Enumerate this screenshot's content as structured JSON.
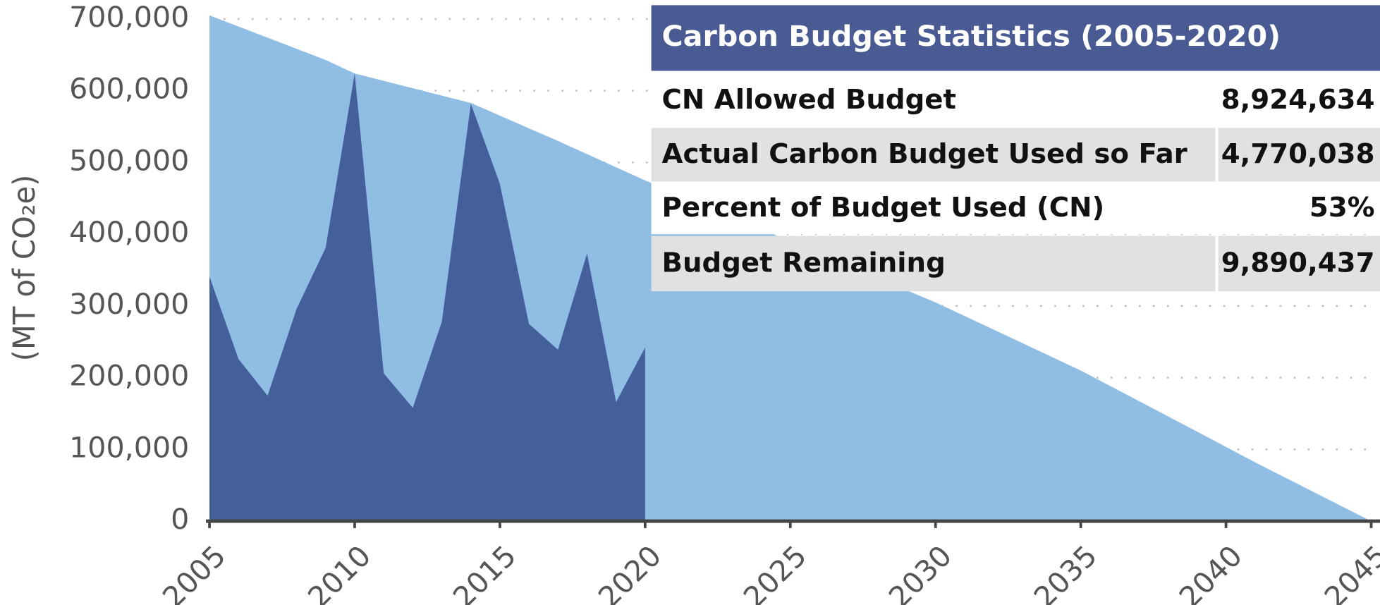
{
  "chart_data": {
    "type": "area",
    "y_label": "(MT of CO₂e)",
    "xlim": [
      2005,
      2045
    ],
    "xticks": [
      2005,
      2010,
      2015,
      2020,
      2025,
      2030,
      2035,
      2040,
      2045
    ],
    "ylim": [
      0,
      700000
    ],
    "yticks": [
      0,
      {
        "value": 100000,
        "label": "100,000"
      },
      {
        "value": 200000,
        "label": "200,000"
      },
      {
        "value": 300000,
        "label": "300,000"
      },
      {
        "value": 400000,
        "label": "400,000"
      },
      {
        "value": 500000,
        "label": "500,000"
      },
      {
        "value": 600000,
        "label": "600,000"
      },
      {
        "value": 700000,
        "label": "700,000"
      }
    ],
    "grid": true,
    "series": [
      {
        "color": "#8fbde3",
        "x": [
          2005,
          2009,
          2010,
          2014,
          2017,
          2020,
          2025,
          2030,
          2035,
          2039,
          2041,
          2045
        ],
        "values": [
          705000,
          643000,
          624000,
          583000,
          530000,
          475000,
          390000,
          305000,
          210000,
          125000,
          82000,
          0
        ]
      },
      {
        "color": "#43609a",
        "x": [
          2005,
          2006,
          2007,
          2008,
          2009,
          2010,
          2011,
          2012,
          2013,
          2014,
          2015,
          2016,
          2017,
          2018,
          2019,
          2020
        ],
        "values": [
          341000,
          226000,
          175000,
          296000,
          381000,
          624000,
          206000,
          158000,
          278000,
          582000,
          470000,
          275000,
          239000,
          373000,
          166000,
          242000
        ]
      }
    ]
  },
  "table": {
    "title": "Carbon Budget Statistics (2005-2020)",
    "rows": [
      [
        "CN Allowed Budget",
        "8,924,634"
      ],
      [
        "Actual Carbon Budget Used so Far",
        "4,770,038"
      ],
      [
        "Percent of Budget Used (CN)",
        "53%"
      ],
      [
        "Budget Remaining",
        "9,890,437"
      ]
    ]
  }
}
